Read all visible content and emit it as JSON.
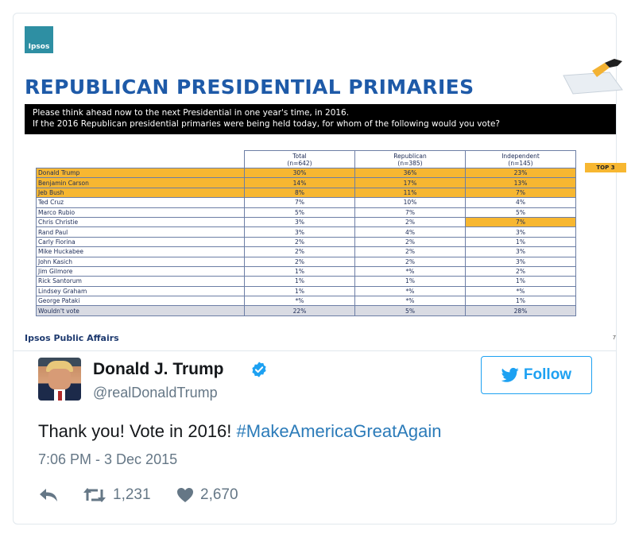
{
  "slide": {
    "logo_text": "Ipsos",
    "title": "REPUBLICAN PRESIDENTIAL PRIMARIES",
    "question_line1": "Please think ahead now to the next Presidential in one year's time, in 2016.",
    "question_line2": "If the 2016 Republican presidential primaries were being held today, for whom of the following would you vote?",
    "columns": [
      {
        "label": "Total",
        "sub": "(n=642)"
      },
      {
        "label": "Republican",
        "sub": "(n=385)"
      },
      {
        "label": "Independent",
        "sub": "(n=145)"
      }
    ],
    "top3_label": "TOP 3",
    "rows": [
      {
        "name": "Donald Trump",
        "total": "30%",
        "republican": "36%",
        "independent": "23%",
        "hl": [
          true,
          true,
          true
        ]
      },
      {
        "name": "Benjamin Carson",
        "total": "14%",
        "republican": "17%",
        "independent": "13%",
        "hl": [
          true,
          true,
          true
        ]
      },
      {
        "name": "Jeb Bush",
        "total": "8%",
        "republican": "11%",
        "independent": "7%",
        "hl": [
          true,
          true,
          true
        ]
      },
      {
        "name": "Ted Cruz",
        "total": "7%",
        "republican": "10%",
        "independent": "4%",
        "hl": [
          false,
          false,
          false
        ]
      },
      {
        "name": "Marco Rubio",
        "total": "5%",
        "republican": "7%",
        "independent": "5%",
        "hl": [
          false,
          false,
          false
        ]
      },
      {
        "name": "Chris Christie",
        "total": "3%",
        "republican": "2%",
        "independent": "7%",
        "hl": [
          false,
          false,
          true
        ]
      },
      {
        "name": "Rand Paul",
        "total": "3%",
        "republican": "4%",
        "independent": "3%",
        "hl": [
          false,
          false,
          false
        ]
      },
      {
        "name": "Carly Fiorina",
        "total": "2%",
        "republican": "2%",
        "independent": "1%",
        "hl": [
          false,
          false,
          false
        ]
      },
      {
        "name": "Mike Huckabee",
        "total": "2%",
        "republican": "2%",
        "independent": "3%",
        "hl": [
          false,
          false,
          false
        ]
      },
      {
        "name": "John Kasich",
        "total": "2%",
        "republican": "2%",
        "independent": "3%",
        "hl": [
          false,
          false,
          false
        ]
      },
      {
        "name": "Jim Gilmore",
        "total": "1%",
        "republican": "*%",
        "independent": "2%",
        "hl": [
          false,
          false,
          false
        ]
      },
      {
        "name": "Rick Santorum",
        "total": "1%",
        "republican": "1%",
        "independent": "1%",
        "hl": [
          false,
          false,
          false
        ]
      },
      {
        "name": "Lindsey Graham",
        "total": "1%",
        "republican": "*%",
        "independent": "*%",
        "hl": [
          false,
          false,
          false
        ]
      },
      {
        "name": "George Pataki",
        "total": "*%",
        "republican": "*%",
        "independent": "1%",
        "hl": [
          false,
          false,
          false
        ]
      },
      {
        "name": "Wouldn't vote",
        "total": "22%",
        "republican": "5%",
        "independent": "28%",
        "hl": [
          false,
          false,
          false
        ]
      }
    ],
    "footer": "Ipsos Public Affairs",
    "page_number": "7",
    "highlight_color": "#f7b731",
    "title_color": "#1e5aa8"
  },
  "tweet": {
    "display_name": "Donald J. Trump",
    "handle": "@realDonaldTrump",
    "verified_icon": "verified-badge-icon",
    "follow_label": "Follow",
    "text": "Thank you! Vote in 2016! ",
    "hashtag": "#MakeAmericaGreatAgain",
    "timestamp": "7:06 PM - 3 Dec 2015",
    "retweets": "1,231",
    "likes": "2,670",
    "accent_color": "#1da1f2",
    "link_color": "#2b7bb9"
  }
}
